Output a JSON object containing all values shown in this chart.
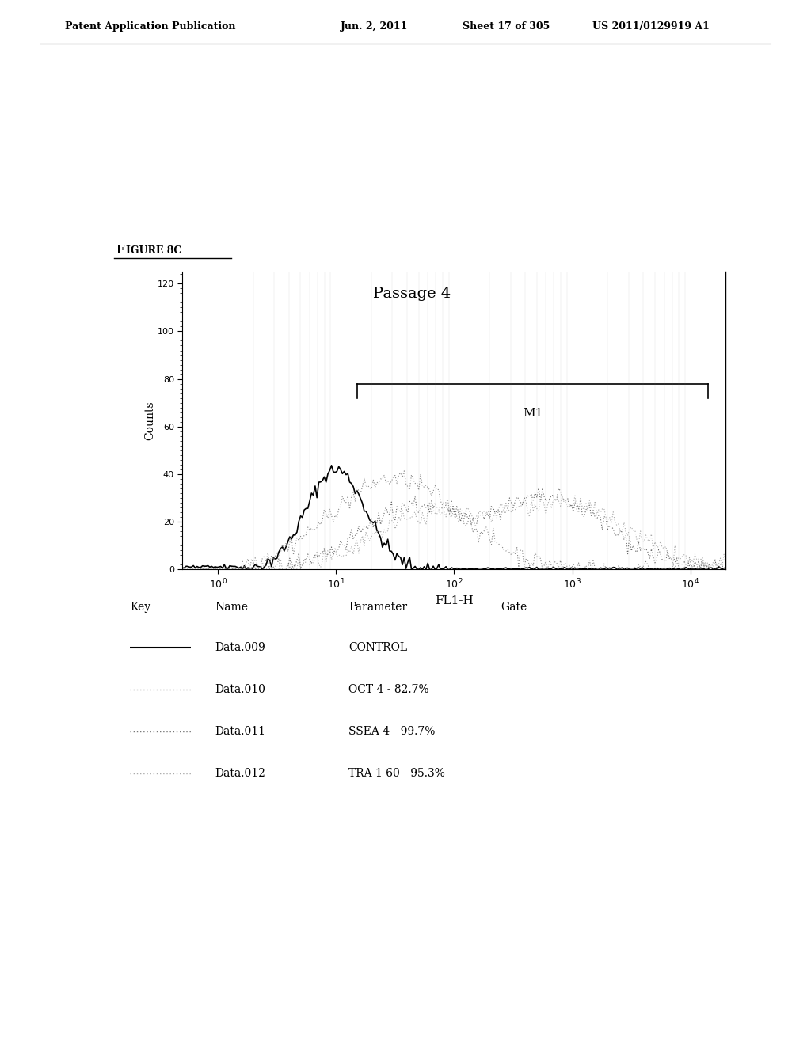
{
  "title_header": "Patent Application Publication",
  "title_date": "Jun. 2, 2011",
  "title_sheet": "Sheet 17 of 305",
  "title_patent": "US 2011/0129919 A1",
  "figure_label_F": "F",
  "figure_label_rest": "IGURE 8C",
  "plot_title": "Passage 4",
  "xlabel": "FL1-H",
  "ylabel": "Counts",
  "ylim": [
    0,
    125
  ],
  "yticks": [
    0,
    20,
    40,
    60,
    80,
    100,
    120
  ],
  "xlim_log": [
    -0.3,
    4.3
  ],
  "m1_label": "M1",
  "m1_x_start_log": 1.18,
  "m1_x_end_log": 4.15,
  "m1_y": 78,
  "legend_headers": [
    "Key",
    "Name",
    "Parameter",
    "Gate"
  ],
  "legend_rows": [
    {
      "name": "Data.009",
      "parameter": "CONTROL",
      "gate": ""
    },
    {
      "name": "Data.010",
      "parameter": "OCT 4 - 82.7%",
      "gate": ""
    },
    {
      "name": "Data.011",
      "parameter": "SSEA 4 - 99.7%",
      "gate": ""
    },
    {
      "name": "Data.012",
      "parameter": "TRA 1 60 - 95.3%",
      "gate": ""
    }
  ],
  "background_color": "#ffffff",
  "plot_bg_color": "#ffffff"
}
